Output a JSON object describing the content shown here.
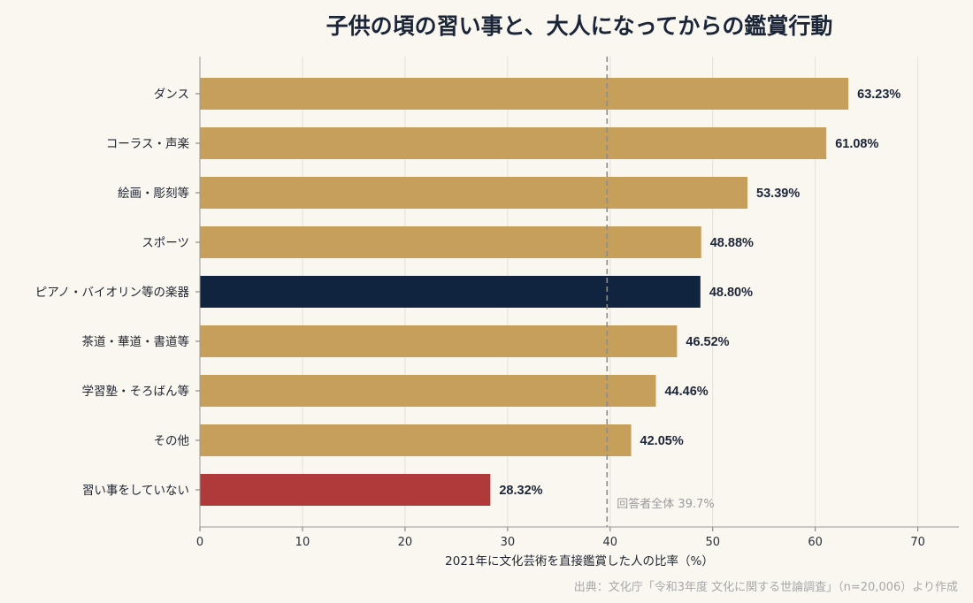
{
  "title": "子供の頃の習い事と、大人になってからの鑑賞行動",
  "source": "出典：文化庁「令和3年度 文化に関する世論調査」（n=20,006）より作成",
  "chart_data": {
    "type": "bar",
    "orientation": "horizontal",
    "title": "子供の頃の習い事と、大人になってからの鑑賞行動",
    "xlabel": "2021年に文化芸術を直接鑑賞した人の比率（%）",
    "ylabel": "",
    "xlim": [
      0,
      74
    ],
    "xticks": [
      0,
      10,
      20,
      30,
      40,
      50,
      60,
      70
    ],
    "grid": "vertical",
    "categories": [
      "ダンス",
      "コーラス・声楽",
      "絵画・彫刻等",
      "スポーツ",
      "ピアノ・バイオリン等の楽器",
      "茶道・華道・書道等",
      "学習塾・そろばん等",
      "その他",
      "習い事をしていない"
    ],
    "values": [
      63.23,
      61.08,
      53.39,
      48.88,
      48.8,
      46.52,
      44.46,
      42.05,
      28.32
    ],
    "value_labels": [
      "63.23%",
      "61.08%",
      "53.39%",
      "48.88%",
      "48.80%",
      "46.52%",
      "44.46%",
      "42.05%",
      "28.32%"
    ],
    "bar_colors": [
      "#c6a05a",
      "#c6a05a",
      "#c6a05a",
      "#c6a05a",
      "#102440",
      "#c6a05a",
      "#c6a05a",
      "#c6a05a",
      "#b03a3a"
    ],
    "reference_line": {
      "value": 39.7,
      "label": "回答者全体 39.7%",
      "style": "dashed",
      "color": "#8a8a8a"
    }
  }
}
